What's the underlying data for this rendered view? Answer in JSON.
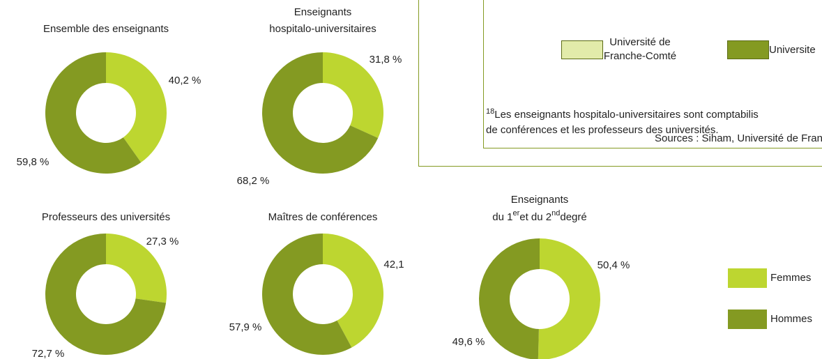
{
  "chart_data": [
    {
      "type": "donut",
      "title": [
        "Ensemble des enseignants"
      ],
      "categories": [
        "Femmes",
        "Hommes"
      ],
      "values": [
        40.2,
        59.8
      ],
      "value_labels": [
        "40,2 %",
        "59,8 %"
      ],
      "colors": [
        "#bdd630",
        "#849a22"
      ]
    },
    {
      "type": "donut",
      "title": [
        "Enseignants",
        "hospitalo-universitaires"
      ],
      "categories": [
        "Femmes",
        "Hommes"
      ],
      "values": [
        31.8,
        68.2
      ],
      "value_labels": [
        "31,8 %",
        "68,2 %"
      ],
      "colors": [
        "#bdd630",
        "#849a22"
      ]
    },
    {
      "type": "donut",
      "title": [
        "Professeurs des universités"
      ],
      "categories": [
        "Femmes",
        "Hommes"
      ],
      "values": [
        27.3,
        72.7
      ],
      "value_labels": [
        "27,3 %",
        "72,7 %"
      ],
      "colors": [
        "#bdd630",
        "#849a22"
      ]
    },
    {
      "type": "donut",
      "title": [
        "Maîtres de conférences"
      ],
      "categories": [
        "Femmes",
        "Hommes"
      ],
      "values": [
        42.1,
        57.9
      ],
      "value_labels": [
        "42,1",
        "57,9 %"
      ],
      "colors": [
        "#bdd630",
        "#849a22"
      ]
    },
    {
      "type": "donut",
      "title": [
        "Enseignants",
        [
          "du 1",
          "er",
          "et du 2",
          "nd",
          "degré"
        ]
      ],
      "categories": [
        "Femmes",
        "Hommes"
      ],
      "values": [
        50.4,
        49.6
      ],
      "value_labels": [
        "50,4 %",
        "49,6 %"
      ],
      "colors": [
        "#bdd630",
        "#849a22"
      ]
    }
  ],
  "box": {
    "legend": [
      [
        "Université de",
        "Franche-Comté"
      ],
      [
        "Universite"
      ]
    ],
    "legend_colors": [
      "#e2ebaa",
      "#849a22"
    ],
    "footnote_number": "18",
    "footnote": [
      "Les enseignants hospitalo-universitaires sont comptabilis",
      "de conférences et les professeurs des universités."
    ],
    "sources": "Sources : Siham, Université de Franche-"
  }
}
